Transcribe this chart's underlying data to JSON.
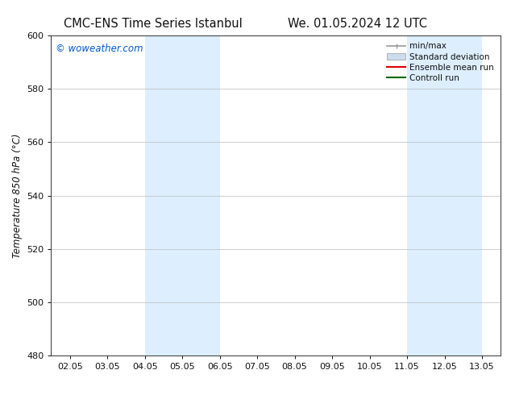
{
  "title_left": "CMC-ENS Time Series Istanbul",
  "title_right": "We. 01.05.2024 12 UTC",
  "ylabel": "Temperature 850 hPa (°C)",
  "ylim": [
    480,
    600
  ],
  "yticks": [
    480,
    500,
    520,
    540,
    560,
    580,
    600
  ],
  "xtick_labels": [
    "02.05",
    "03.05",
    "04.05",
    "05.05",
    "06.05",
    "07.05",
    "08.05",
    "09.05",
    "10.05",
    "11.05",
    "12.05",
    "13.05"
  ],
  "xtick_positions": [
    2,
    3,
    4,
    5,
    6,
    7,
    8,
    9,
    10,
    11,
    12,
    13
  ],
  "xlim": [
    1.5,
    13.5
  ],
  "shaded_bands": [
    {
      "x_start": 4.0,
      "x_end": 6.0
    },
    {
      "x_start": 11.0,
      "x_end": 13.0
    }
  ],
  "band_color": "#ddeeff",
  "watermark_text": "© woweather.com",
  "watermark_color": "#0055cc",
  "legend_entries": [
    {
      "label": "min/max",
      "color": "#999999",
      "lw": 1.2,
      "style": "minmax"
    },
    {
      "label": "Standard deviation",
      "color": "#ccddee",
      "lw": 8,
      "style": "band"
    },
    {
      "label": "Ensemble mean run",
      "color": "#dd0000",
      "lw": 1.5,
      "style": "line"
    },
    {
      "label": "Controll run",
      "color": "#006600",
      "lw": 1.5,
      "style": "line"
    }
  ],
  "background_color": "#ffffff",
  "grid_color": "#bbbbbb",
  "spine_color": "#333333",
  "font_color": "#111111",
  "title_fontsize": 10.5,
  "ylabel_fontsize": 8.5,
  "tick_fontsize": 8,
  "legend_fontsize": 7.5,
  "watermark_fontsize": 8.5
}
